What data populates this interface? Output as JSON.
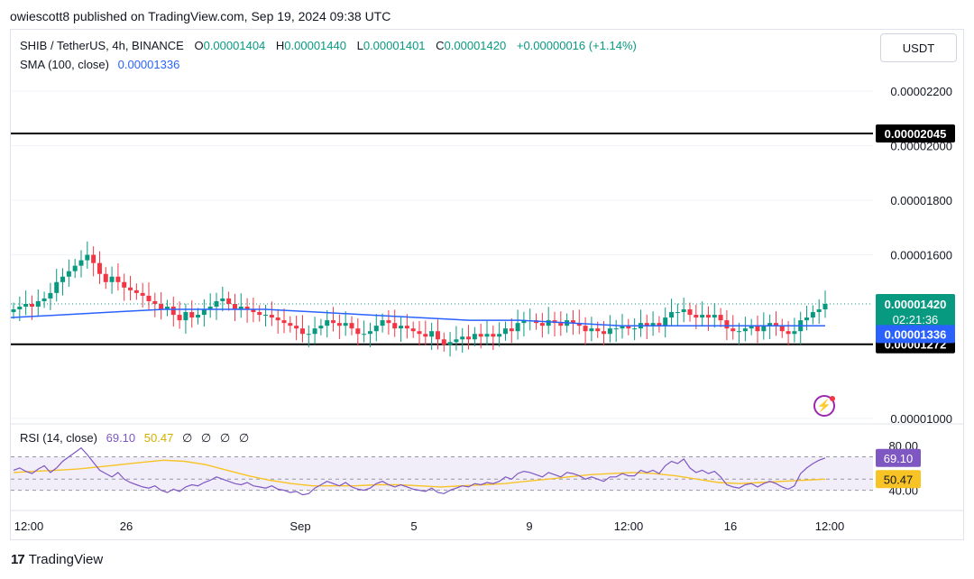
{
  "header": {
    "publisher": "owiescott8 published on TradingView.com, Sep 19, 2024 09:38 UTC"
  },
  "legend": {
    "symbol": "SHIB / TetherUS, 4h, BINANCE",
    "o_label": "O",
    "o_value": "0.00001404",
    "h_label": "H",
    "h_value": "0.00001440",
    "l_label": "L",
    "l_value": "0.00001401",
    "c_label": "C",
    "c_value": "0.00001420",
    "change": "+0.00000016 (+1.14%)",
    "sma_label": "SMA (100, close)",
    "sma_value": "0.00001336"
  },
  "currency_button": "USDT",
  "footer": {
    "brand": "TradingView",
    "mark": "17"
  },
  "colors": {
    "up": "#089981",
    "down": "#f23645",
    "sma": "#2962ff",
    "rsi": "#7e57c2",
    "rsi_ma": "#f7c325",
    "level": "#000000"
  },
  "chart_data": [
    {
      "type": "candlestick",
      "x_ticks": [
        "12:00",
        "26",
        "Sep",
        "5",
        "9",
        "12:00",
        "16",
        "12:00"
      ],
      "y_ticks": [
        "0.00002200",
        "0.00002000",
        "0.00001800",
        "0.00001600",
        "0.00001000"
      ],
      "ylim": [
        9.8e-06,
        2.27e-05
      ],
      "horizontal_levels": [
        {
          "label": "0.00002045",
          "value": 2.045e-05
        },
        {
          "label": "0.00001272",
          "value": 1.272e-05
        }
      ],
      "price_tags": [
        {
          "label": "0.00001420",
          "value": 1.42e-05,
          "sublabel": "02:21:36"
        },
        {
          "label": "0.00001336",
          "value": 1.336e-05
        }
      ],
      "closes": [
        1.4e-05,
        1.41e-05,
        1.42e-05,
        1.41e-05,
        1.43e-05,
        1.44e-05,
        1.46e-05,
        1.5e-05,
        1.52e-05,
        1.54e-05,
        1.56e-05,
        1.58e-05,
        1.6e-05,
        1.57e-05,
        1.53e-05,
        1.5e-05,
        1.52e-05,
        1.5e-05,
        1.48e-05,
        1.47e-05,
        1.46e-05,
        1.45e-05,
        1.43e-05,
        1.42e-05,
        1.4e-05,
        1.41e-05,
        1.38e-05,
        1.36e-05,
        1.39e-05,
        1.37e-05,
        1.38e-05,
        1.4e-05,
        1.41e-05,
        1.43e-05,
        1.44e-05,
        1.42e-05,
        1.4e-05,
        1.41e-05,
        1.4e-05,
        1.39e-05,
        1.38e-05,
        1.38e-05,
        1.37e-05,
        1.36e-05,
        1.35e-05,
        1.34e-05,
        1.33e-05,
        1.31e-05,
        1.31e-05,
        1.33e-05,
        1.34e-05,
        1.36e-05,
        1.35e-05,
        1.34e-05,
        1.35e-05,
        1.33e-05,
        1.31e-05,
        1.31e-05,
        1.32e-05,
        1.34e-05,
        1.36e-05,
        1.35e-05,
        1.33e-05,
        1.34e-05,
        1.33e-05,
        1.32e-05,
        1.31e-05,
        1.3e-05,
        1.32e-05,
        1.29e-05,
        1.27e-05,
        1.28e-05,
        1.29e-05,
        1.3e-05,
        1.29e-05,
        1.31e-05,
        1.3e-05,
        1.31e-05,
        1.3e-05,
        1.31e-05,
        1.33e-05,
        1.32e-05,
        1.35e-05,
        1.36e-05,
        1.36e-05,
        1.35e-05,
        1.34e-05,
        1.36e-05,
        1.35e-05,
        1.34e-05,
        1.36e-05,
        1.35e-05,
        1.34e-05,
        1.32e-05,
        1.33e-05,
        1.32e-05,
        1.31e-05,
        1.33e-05,
        1.33e-05,
        1.34e-05,
        1.33e-05,
        1.33e-05,
        1.35e-05,
        1.34e-05,
        1.35e-05,
        1.34e-05,
        1.37e-05,
        1.39e-05,
        1.39e-05,
        1.4e-05,
        1.38e-05,
        1.37e-05,
        1.38e-05,
        1.37e-05,
        1.38e-05,
        1.36e-05,
        1.33e-05,
        1.32e-05,
        1.32e-05,
        1.33e-05,
        1.34e-05,
        1.32e-05,
        1.34e-05,
        1.35e-05,
        1.34e-05,
        1.32e-05,
        1.31e-05,
        1.32e-05,
        1.36e-05,
        1.37e-05,
        1.39e-05,
        1.4e-05,
        1.42e-05
      ],
      "sma": [
        1.37e-05,
        1.38e-05,
        1.39e-05,
        1.4e-05,
        1.4e-05,
        1.4e-05,
        1.39e-05,
        1.38e-05,
        1.37e-05,
        1.36e-05,
        1.36e-05,
        1.35e-05,
        1.34e-05,
        1.34e-05,
        1.34e-05,
        1.34e-05,
        1.34e-05
      ],
      "sma_value": 1.336e-05
    },
    {
      "type": "line",
      "title": "RSI (14, close)",
      "values_label": [
        "69.10",
        "50.47"
      ],
      "extra_labels": [
        "∅",
        "∅",
        "∅",
        "∅"
      ],
      "y_ticks": [
        "80.00",
        "40.00"
      ],
      "ylim": [
        30,
        85
      ],
      "band": [
        40,
        70
      ],
      "middle": 50,
      "series": [
        {
          "name": "RSI",
          "value_label": "69.10",
          "values": [
            58,
            60,
            57,
            55,
            59,
            62,
            56,
            60,
            66,
            70,
            74,
            78,
            72,
            65,
            58,
            55,
            52,
            56,
            50,
            47,
            45,
            43,
            42,
            44,
            40,
            38,
            41,
            39,
            43,
            45,
            44,
            47,
            49,
            52,
            50,
            48,
            46,
            45,
            47,
            44,
            43,
            42,
            44,
            41,
            40,
            38,
            39,
            36,
            37,
            42,
            45,
            48,
            46,
            44,
            47,
            43,
            41,
            40,
            42,
            46,
            48,
            45,
            43,
            45,
            43,
            41,
            40,
            39,
            42,
            38,
            37,
            40,
            42,
            44,
            43,
            46,
            45,
            47,
            46,
            48,
            52,
            50,
            55,
            57,
            56,
            54,
            52,
            56,
            54,
            52,
            56,
            55,
            53,
            50,
            52,
            50,
            48,
            52,
            52,
            55,
            53,
            53,
            58,
            56,
            58,
            55,
            62,
            66,
            64,
            68,
            60,
            56,
            58,
            55,
            57,
            52,
            45,
            43,
            42,
            45,
            46,
            43,
            46,
            48,
            46,
            43,
            41,
            44,
            55,
            60,
            64,
            67,
            69
          ]
        },
        {
          "name": "RSI-based MA",
          "value_label": "50.47",
          "values": [
            56,
            57,
            58,
            59,
            61,
            63,
            65,
            67,
            66,
            63,
            58,
            53,
            49,
            46,
            44,
            44,
            44,
            45,
            45,
            44,
            43,
            44,
            45,
            46,
            48,
            50,
            52,
            54,
            55,
            56,
            55,
            53,
            50,
            47,
            46,
            47,
            48,
            49,
            50
          ]
        }
      ]
    }
  ]
}
